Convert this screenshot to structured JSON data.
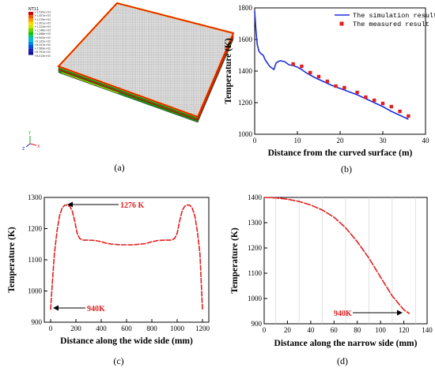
{
  "captions": [
    "(a)",
    "(b)",
    "(c)",
    "(d)"
  ],
  "colors": {
    "simulation": "#1f2fd6",
    "measured": "#e01f1f",
    "red_curve": "#e01f1f",
    "arrow": "#000000"
  },
  "panel_a": {
    "legend_title": "NT11",
    "legend_values": [
      "+1.535e+03",
      "+1.457e+03",
      "+1.379e+03",
      "+1.301e+03",
      "+1.224e+03",
      "+1.146e+03",
      "+1.068e+03",
      "+9.903e+02",
      "+9.125e+02",
      "+8.347e+02",
      "+7.569e+02",
      "+6.791e+02",
      "+6.013e+02"
    ],
    "legend_colors": [
      "#d60000",
      "#f05a00",
      "#ff9a00",
      "#ffd800",
      "#c8e800",
      "#6fd200",
      "#18c400",
      "#00c48a",
      "#00b8d8",
      "#0088e8",
      "#0050e0",
      "#1a20c0",
      "#1010a0"
    ],
    "triad_labels": [
      "Y",
      "X",
      "Z"
    ],
    "icon": "mesh-slab-icon"
  },
  "chart_data": [
    {
      "id": "b",
      "type": "scatter",
      "xlabel": "Distance from the curved surface (m)",
      "ylabel": "Temperature (K)",
      "xlim": [
        0,
        40
      ],
      "ylim": [
        1000,
        1800
      ],
      "xticks": [
        "0",
        "10",
        "20",
        "30",
        "40"
      ],
      "yticks": [
        "1000",
        "1200",
        "1400",
        "1600",
        "1800"
      ],
      "legend_position": "top-right",
      "series": [
        {
          "name": "The simulation result",
          "kind": "line",
          "x": [
            0,
            0.3,
            0.6,
            1.0,
            1.5,
            2.0,
            2.5,
            3.0,
            3.5,
            4.0,
            4.5,
            5.0,
            5.5,
            6.0,
            7.0,
            8.0,
            9.0,
            10.0,
            11.0,
            12.0,
            14.0,
            16.0,
            18.0,
            20.0,
            22.0,
            24.0,
            26.0,
            28.0,
            30.0,
            32.0,
            34.0,
            36.0
          ],
          "y": [
            1780,
            1660,
            1570,
            1525,
            1510,
            1500,
            1470,
            1450,
            1430,
            1420,
            1410,
            1450,
            1460,
            1465,
            1460,
            1440,
            1435,
            1425,
            1410,
            1390,
            1360,
            1335,
            1310,
            1290,
            1270,
            1250,
            1225,
            1200,
            1175,
            1145,
            1120,
            1095
          ]
        },
        {
          "name": "The measured result",
          "kind": "markers",
          "x": [
            9.0,
            11.0,
            13.0,
            15.0,
            17.0,
            19.0,
            21.0,
            24.0,
            26.0,
            28.0,
            30.0,
            32.0,
            34.0,
            36.0
          ],
          "y": [
            1445,
            1430,
            1390,
            1365,
            1335,
            1305,
            1295,
            1265,
            1235,
            1215,
            1195,
            1175,
            1145,
            1115
          ]
        }
      ]
    },
    {
      "id": "c",
      "type": "line",
      "xlabel": "Distance along the wide side (mm)",
      "ylabel": "Temperature (K)",
      "xlim": [
        -50,
        1250
      ],
      "ylim": [
        900,
        1300
      ],
      "xticks": [
        "0",
        "200",
        "400",
        "600",
        "800",
        "1000",
        "1200"
      ],
      "yticks": [
        "900",
        "1000",
        "1100",
        "1200",
        "1300"
      ],
      "annotations": [
        "1276 K",
        "940K"
      ],
      "series": [
        {
          "x": [
            0,
            15,
            30,
            50,
            70,
            90,
            110,
            130,
            150,
            170,
            190,
            210,
            230,
            260,
            300,
            350,
            400,
            450,
            500,
            550,
            600,
            650,
            700,
            750,
            800,
            850,
            900,
            950,
            980,
            1000,
            1020,
            1040,
            1060,
            1080,
            1100,
            1120,
            1140,
            1160,
            1180,
            1200
          ],
          "y": [
            940,
            1035,
            1120,
            1190,
            1240,
            1265,
            1275,
            1276,
            1272,
            1258,
            1225,
            1185,
            1168,
            1163,
            1163,
            1162,
            1158,
            1152,
            1150,
            1148,
            1148,
            1148,
            1150,
            1152,
            1158,
            1162,
            1163,
            1163,
            1168,
            1185,
            1225,
            1258,
            1272,
            1276,
            1275,
            1265,
            1240,
            1190,
            1120,
            940
          ]
        }
      ]
    },
    {
      "id": "d",
      "type": "line",
      "xlabel": "Distance along the narrow side (mm)",
      "ylabel": "Temperature (K)",
      "xlim": [
        0,
        140
      ],
      "ylim": [
        900,
        1400
      ],
      "xticks": [
        "0",
        "20",
        "40",
        "60",
        "80",
        "100",
        "120",
        "140"
      ],
      "yticks": [
        "900",
        "1000",
        "1100",
        "1200",
        "1300",
        "1400"
      ],
      "annotations": [
        "940K"
      ],
      "series": [
        {
          "x": [
            0,
            10,
            20,
            30,
            40,
            50,
            60,
            70,
            80,
            90,
            100,
            110,
            120,
            125
          ],
          "y": [
            1400,
            1398,
            1393,
            1384,
            1370,
            1350,
            1322,
            1280,
            1225,
            1160,
            1085,
            1010,
            955,
            940
          ]
        }
      ]
    }
  ]
}
